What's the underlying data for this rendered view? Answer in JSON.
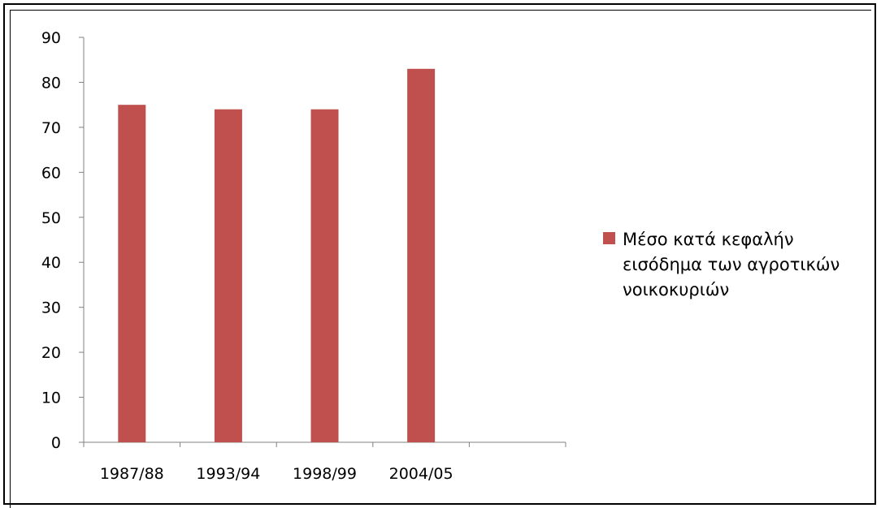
{
  "chart_data": {
    "type": "bar",
    "title": "",
    "xlabel": "",
    "ylabel": "",
    "categories": [
      "1987/88",
      "1993/94",
      "1998/99",
      "2004/05"
    ],
    "series": [
      {
        "name": "Μέσο κατά κεφαλήν εισόδημα των αγροτικών νοικοκυριών",
        "values": [
          75,
          74,
          74,
          83
        ],
        "color": "#c0504d"
      }
    ],
    "ylim": [
      0,
      90
    ],
    "yticks": [
      0,
      10,
      20,
      30,
      40,
      50,
      60,
      70,
      80,
      90
    ],
    "grid": false,
    "legend": "right"
  }
}
